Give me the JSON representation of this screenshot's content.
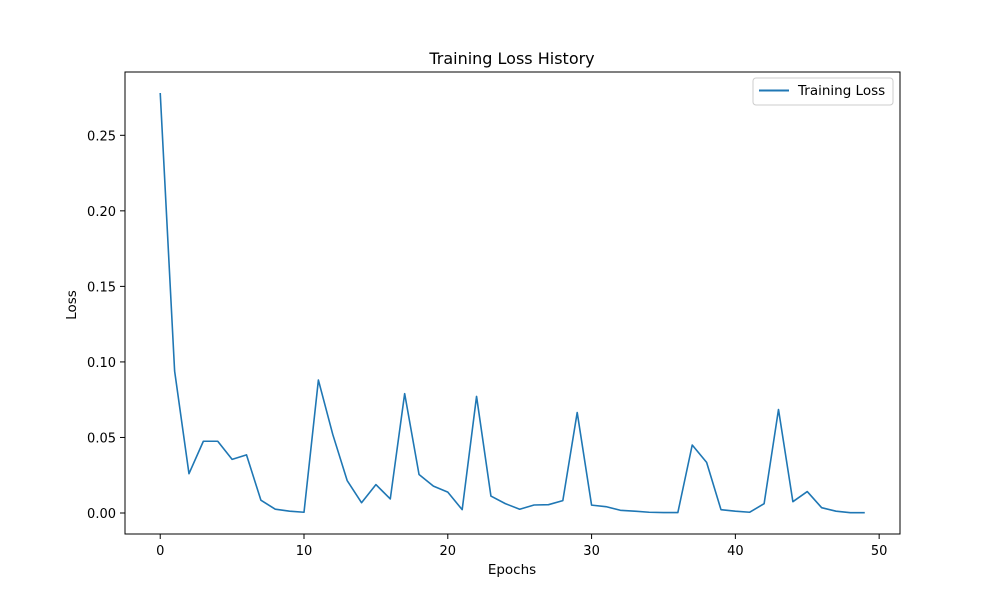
{
  "chart_data": {
    "type": "line",
    "title": "Training Loss History",
    "xlabel": "Epochs",
    "ylabel": "Loss",
    "xlim": [
      -2.45,
      51.45
    ],
    "ylim": [
      -0.0139,
      0.2919
    ],
    "xticks": [
      0,
      10,
      20,
      30,
      40,
      50
    ],
    "xtick_labels": [
      "0",
      "10",
      "20",
      "30",
      "40",
      "50"
    ],
    "yticks": [
      0.0,
      0.05,
      0.1,
      0.15,
      0.2,
      0.25
    ],
    "ytick_labels": [
      "0.00",
      "0.05",
      "0.10",
      "0.15",
      "0.20",
      "0.25"
    ],
    "grid": false,
    "legend_position": "top-right",
    "series": [
      {
        "name": "Training Loss",
        "color": "#1f77b4",
        "x": [
          0,
          1,
          2,
          3,
          4,
          5,
          6,
          7,
          8,
          9,
          10,
          11,
          12,
          13,
          14,
          15,
          16,
          17,
          18,
          19,
          20,
          21,
          22,
          23,
          24,
          25,
          26,
          27,
          28,
          29,
          30,
          31,
          32,
          33,
          34,
          35,
          36,
          37,
          38,
          39,
          40,
          41,
          42,
          43,
          44,
          45,
          46,
          47,
          48,
          49
        ],
        "values": [
          0.278,
          0.094,
          0.026,
          0.0475,
          0.0475,
          0.0355,
          0.0385,
          0.0085,
          0.0025,
          0.0012,
          0.0005,
          0.088,
          0.052,
          0.0215,
          0.0068,
          0.0188,
          0.0093,
          0.079,
          0.0255,
          0.0178,
          0.0138,
          0.0022,
          0.0772,
          0.0112,
          0.0062,
          0.0025,
          0.0053,
          0.0055,
          0.0082,
          0.0665,
          0.0052,
          0.0042,
          0.0018,
          0.0012,
          0.0005,
          0.0003,
          0.0003,
          0.045,
          0.0335,
          0.0022,
          0.0012,
          0.0005,
          0.0062,
          0.0685,
          0.0075,
          0.0142,
          0.0035,
          0.0012,
          0.0002,
          0.0002
        ]
      }
    ]
  }
}
